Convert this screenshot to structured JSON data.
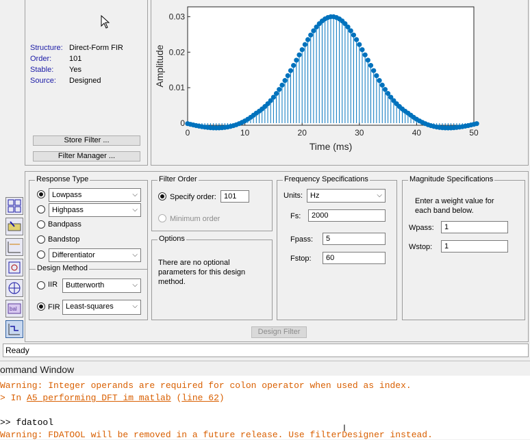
{
  "filter_info": {
    "rows": [
      {
        "label": "Structure:",
        "value": "Direct-Form FIR"
      },
      {
        "label": "Order:",
        "value": "101"
      },
      {
        "label": "Stable:",
        "value": "Yes"
      },
      {
        "label": "Source:",
        "value": "Designed"
      }
    ],
    "store_button": "Store Filter ...",
    "manager_button": "Filter Manager ..."
  },
  "plot": {
    "xlabel": "Time (ms)",
    "ylabel": "Amplitude",
    "xticks": [
      "0",
      "10",
      "20",
      "30",
      "40",
      "50"
    ],
    "yticks": [
      "0",
      "0.01",
      "0.02",
      "0.03"
    ]
  },
  "chart_data": {
    "type": "stem",
    "title": "",
    "xlabel": "Time (ms)",
    "ylabel": "Amplitude",
    "xlim": [
      0,
      50
    ],
    "ylim": [
      0,
      0.032
    ],
    "color": "#0072bd",
    "n": 102,
    "x_start": 0,
    "x_end": 50.5,
    "center": 25.25,
    "peak": 0.03,
    "sigma": 6.1,
    "min_value": -0.0015
  },
  "response_type": {
    "title": "Response Type",
    "options": [
      {
        "label": "Lowpass",
        "checked": true,
        "has_select": true
      },
      {
        "label": "Highpass",
        "checked": false,
        "has_select": true
      },
      {
        "label": "Bandpass",
        "checked": false,
        "has_select": false
      },
      {
        "label": "Bandstop",
        "checked": false,
        "has_select": false
      },
      {
        "label": "Differentiator",
        "checked": false,
        "has_select": true
      }
    ]
  },
  "design_method": {
    "title": "Design Method",
    "iir_label": "IIR",
    "iir_value": "Butterworth",
    "fir_label": "FIR",
    "fir_value": "Least-squares"
  },
  "filter_order": {
    "title": "Filter Order",
    "specify_label": "Specify order:",
    "specify_value": "101",
    "minimum_label": "Minimum order"
  },
  "options": {
    "title": "Options",
    "text": "There are no optional parameters for this design method."
  },
  "freq_specs": {
    "title": "Frequency Specifications",
    "units_label": "Units:",
    "units_value": "Hz",
    "fs_label": "Fs:",
    "fs_value": "2000",
    "fpass_label": "Fpass:",
    "fpass_value": "5",
    "fstop_label": "Fstop:",
    "fstop_value": "60"
  },
  "mag_specs": {
    "title": "Magnitude Specifications",
    "text": "Enter a weight value for each band below.",
    "wpass_label": "Wpass:",
    "wpass_value": "1",
    "wstop_label": "Wstop:",
    "wstop_value": "1"
  },
  "design_button": "Design Filter",
  "status": "Ready",
  "command_window": {
    "title": "ommand Window",
    "line1": "Warning: Integer operands are required for colon operator when used as index.",
    "line2_prefix": "> In ",
    "line2_link": "A5_performing_DFT_im_matlab",
    "line2_mid": " (",
    "line2_link2": "line 62",
    "line2_end": ")",
    "prompt": ">> fdatool",
    "line4": "Warning: FDATOOL will be removed in a future release. Use filterDesigner instead."
  },
  "colors": {
    "warning": "#d95f00",
    "stem": "#0072bd",
    "label_blue": "#1a1aa6"
  }
}
